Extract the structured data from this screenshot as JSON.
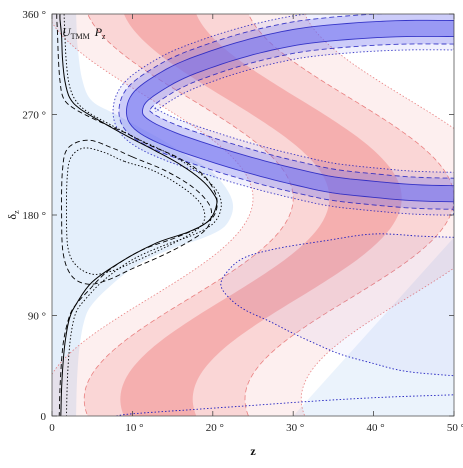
{
  "chart_data": {
    "type": "area",
    "title": "U_TMM P_z",
    "title_main": "U",
    "title_sub": "TMM",
    "title_p": "P",
    "title_p_sub": "z",
    "xlabel": "z",
    "ylabel_main": "δ",
    "ylabel_sub": "z",
    "xlim": [
      0,
      50
    ],
    "ylim": [
      0,
      360
    ],
    "x_ticks": [
      {
        "value": 0,
        "label": "0"
      },
      {
        "value": 10,
        "label": "10 °"
      },
      {
        "value": 20,
        "label": "20 °"
      },
      {
        "value": 30,
        "label": "30 °"
      },
      {
        "value": 40,
        "label": "40 °"
      },
      {
        "value": 50,
        "label": "50 °"
      }
    ],
    "y_ticks": [
      {
        "value": 0,
        "label": "0"
      },
      {
        "value": 90,
        "label": "90 °"
      },
      {
        "value": 180,
        "label": "180 °"
      },
      {
        "value": 270,
        "label": "270 °"
      },
      {
        "value": 360,
        "label": "360 °"
      }
    ],
    "grid": false,
    "colors": {
      "red_band": "#f08080",
      "red_line": "#e05050",
      "blue_band": "#6f6ff0",
      "blue_line": "#2020c0",
      "light_fill": "#dbe9fa",
      "black_line": "#000000"
    },
    "red_bands": [
      {
        "center": 26.0,
        "amplitude": 13.0,
        "phase": 105,
        "halfwidth": 4.5,
        "opacity": 0.45,
        "line": "none"
      },
      {
        "center": 27.0,
        "amplitude": 13.0,
        "phase": 105,
        "halfwidth": 10.0,
        "opacity": 0.22,
        "line": "dashed"
      },
      {
        "center": 28.0,
        "amplitude": 13.0,
        "phase": 105,
        "halfwidth": 16.0,
        "opacity": 0.13,
        "line": "dotted"
      }
    ],
    "black_contours": [
      {
        "style": "solid",
        "points": [
          [
            1.0,
            360
          ],
          [
            1.0,
            355
          ],
          [
            1.2,
            340
          ],
          [
            1.3,
            320
          ],
          [
            1.6,
            300
          ],
          [
            2.2,
            285
          ],
          [
            3.5,
            275
          ],
          [
            6.5,
            262
          ],
          [
            9.5,
            250
          ],
          [
            13.0,
            237
          ],
          [
            16.0,
            225
          ],
          [
            18.5,
            212
          ],
          [
            20.0,
            200
          ],
          [
            20.5,
            190
          ],
          [
            19.5,
            175
          ],
          [
            17.0,
            165
          ],
          [
            13.0,
            155
          ],
          [
            9.0,
            140
          ],
          [
            5.0,
            120
          ],
          [
            3.0,
            100
          ],
          [
            2.2,
            88
          ],
          [
            1.7,
            70
          ],
          [
            1.4,
            50
          ],
          [
            1.2,
            25
          ],
          [
            1.1,
            0
          ]
        ]
      },
      {
        "style": "dashed",
        "points": [
          [
            0.6,
            360
          ],
          [
            0.6,
            355
          ],
          [
            0.7,
            340
          ],
          [
            0.8,
            320
          ],
          [
            1.0,
            300
          ],
          [
            1.4,
            285
          ],
          [
            2.6,
            276
          ],
          [
            5.5,
            265
          ],
          [
            9.0,
            254
          ],
          [
            12.0,
            243
          ],
          [
            15.5,
            232
          ],
          [
            18.0,
            221
          ],
          [
            19.5,
            210
          ],
          [
            20.5,
            195
          ],
          [
            20.2,
            180
          ],
          [
            18.5,
            170
          ],
          [
            15.5,
            160
          ],
          [
            11.0,
            148
          ],
          [
            7.0,
            130
          ],
          [
            4.5,
            112
          ],
          [
            3.0,
            100
          ],
          [
            2.2,
            90
          ],
          [
            1.5,
            70
          ],
          [
            1.2,
            50
          ],
          [
            1.0,
            25
          ],
          [
            0.9,
            0
          ]
        ]
      },
      {
        "style": "dotted",
        "points": [
          [
            1.5,
            360
          ],
          [
            1.6,
            340
          ],
          [
            1.8,
            315
          ],
          [
            2.2,
            295
          ],
          [
            3.0,
            282
          ],
          [
            4.5,
            272
          ],
          [
            7.5,
            260
          ],
          [
            11.0,
            247
          ],
          [
            14.5,
            235
          ],
          [
            17.5,
            222
          ],
          [
            19.5,
            210
          ],
          [
            20.8,
            198
          ],
          [
            21.0,
            185
          ],
          [
            20.0,
            172
          ],
          [
            17.5,
            162
          ],
          [
            14.0,
            153
          ],
          [
            10.0,
            140
          ],
          [
            6.5,
            122
          ],
          [
            4.2,
            105
          ],
          [
            3.0,
            93
          ],
          [
            2.4,
            75
          ],
          [
            2.1,
            55
          ],
          [
            1.9,
            30
          ],
          [
            1.8,
            0
          ]
        ]
      }
    ],
    "black_loops": [
      {
        "style": "dashed",
        "points": [
          [
            10.0,
            232
          ],
          [
            7.5,
            240
          ],
          [
            4.5,
            247
          ],
          [
            2.0,
            240
          ],
          [
            1.3,
            220
          ],
          [
            1.2,
            180
          ],
          [
            1.4,
            145
          ],
          [
            2.5,
            125
          ],
          [
            4.5,
            118
          ],
          [
            7.0,
            122
          ],
          [
            10.0,
            132
          ],
          [
            13.5,
            143
          ],
          [
            16.5,
            154
          ],
          [
            19.0,
            166
          ],
          [
            19.8,
            178
          ],
          [
            19.5,
            190
          ],
          [
            17.5,
            205
          ],
          [
            14.0,
            220
          ]
        ]
      },
      {
        "style": "dotted",
        "points": [
          [
            9.0,
            228
          ],
          [
            6.5,
            236
          ],
          [
            4.0,
            240
          ],
          [
            2.4,
            232
          ],
          [
            1.9,
            215
          ],
          [
            1.8,
            180
          ],
          [
            2.0,
            150
          ],
          [
            3.0,
            135
          ],
          [
            5.0,
            127
          ],
          [
            7.5,
            130
          ],
          [
            10.5,
            139
          ],
          [
            13.5,
            149
          ],
          [
            16.5,
            160
          ],
          [
            18.5,
            170
          ],
          [
            19.0,
            180
          ],
          [
            18.3,
            192
          ],
          [
            16.0,
            206
          ],
          [
            12.5,
            220
          ]
        ]
      }
    ],
    "blue_bands": [
      {
        "style": "solid",
        "halfwidth": 3.0,
        "opacity": 0.55,
        "outer_dash": "none"
      },
      {
        "style": "dashed",
        "halfwidth": 5.8,
        "opacity": 0.28,
        "outer_dash": "dashed"
      },
      {
        "style": "dotted",
        "halfwidth": 8.0,
        "opacity": 0.1,
        "outer_dash": "dotted"
      }
    ],
    "blue_spine": [
      [
        50,
        347
      ],
      [
        44,
        347
      ],
      [
        38,
        345
      ],
      [
        32,
        341
      ],
      [
        28,
        336
      ],
      [
        24,
        329
      ],
      [
        20,
        320
      ],
      [
        16,
        309
      ],
      [
        13,
        297
      ],
      [
        11,
        286
      ],
      [
        10.3,
        276
      ],
      [
        10.5,
        266
      ],
      [
        12,
        257
      ],
      [
        15,
        247
      ],
      [
        19,
        237
      ],
      [
        23,
        228
      ],
      [
        27,
        220
      ],
      [
        31,
        213
      ],
      [
        35,
        207
      ],
      [
        40,
        203
      ],
      [
        45,
        200
      ],
      [
        50,
        199
      ]
    ],
    "blue_lower_loop": {
      "points": [
        [
          50,
          160
        ],
        [
          46,
          161
        ],
        [
          40,
          163
        ],
        [
          34,
          157
        ],
        [
          28,
          150
        ],
        [
          24,
          142
        ],
        [
          22,
          131
        ],
        [
          21,
          118
        ],
        [
          22,
          106
        ],
        [
          24,
          95
        ],
        [
          27,
          85
        ],
        [
          30,
          74
        ],
        [
          33,
          64
        ],
        [
          36,
          55
        ],
        [
          40,
          47
        ],
        [
          44,
          40
        ],
        [
          50,
          36
        ]
      ]
    },
    "blue_bottom_arc": {
      "points": [
        [
          8,
          0
        ],
        [
          10,
          2
        ],
        [
          18,
          6
        ],
        [
          26,
          10
        ],
        [
          34,
          14
        ],
        [
          42,
          17
        ],
        [
          50,
          19
        ]
      ]
    }
  }
}
